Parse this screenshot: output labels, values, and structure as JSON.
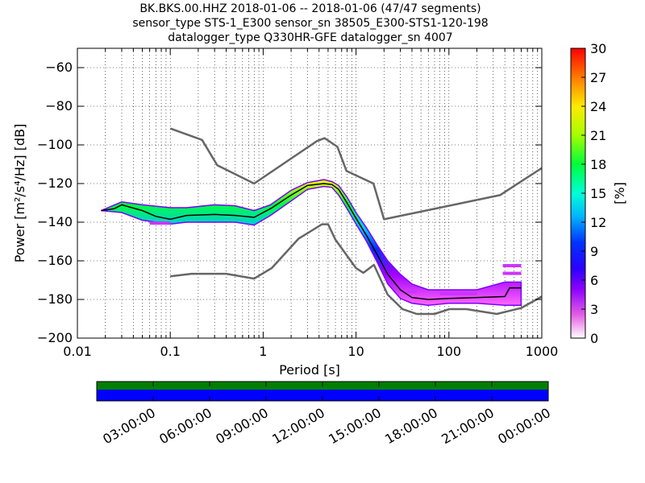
{
  "title_lines": [
    "BK.BKS.00.HHZ   2018-01-06 -- 2018-01-06  (47/47 segments)",
    "sensor_type STS-1_E300 sensor_sn 38505_E300-STS1-120-198",
    "datalogger_type Q330HR-GFE datalogger_sn 4007"
  ],
  "chart_data": {
    "type": "heatmap",
    "title": "BK.BKS.00.HHZ   2018-01-06 -- 2018-01-06  (47/47 segments)",
    "xlabel": "Period [s]",
    "ylabel": "Power [m²/s⁴/Hz] [dB]",
    "xscale": "log",
    "xlim": [
      0.01,
      1000
    ],
    "ylim": [
      -200,
      -50
    ],
    "x_tick_labels": [
      "0.01",
      "0.1",
      "1",
      "10",
      "100",
      "1000"
    ],
    "y_ticks": [
      -200,
      -180,
      -160,
      -140,
      -120,
      -100,
      -80,
      -60
    ],
    "grid": true,
    "colorbar": {
      "label": "[%]",
      "min": 0,
      "max": 30,
      "ticks": [
        0,
        3,
        6,
        9,
        12,
        15,
        18,
        21,
        24,
        27,
        30
      ]
    },
    "high_noise_model": {
      "x": [
        0.1,
        0.22,
        0.32,
        0.8,
        3.8,
        4.6,
        6.3,
        7.9,
        15.4,
        20,
        354.8,
        1000
      ],
      "y": [
        -91.5,
        -97.4,
        -110.5,
        -120,
        -98,
        -96.5,
        -101,
        -113.5,
        -120,
        -138.5,
        -126,
        -112
      ]
    },
    "low_noise_model": {
      "x": [
        0.1,
        0.17,
        0.4,
        0.8,
        1.24,
        2.4,
        4.3,
        5,
        6,
        10,
        12,
        15.6,
        21.9,
        31.6,
        45,
        70,
        101,
        154,
        328,
        600,
        1000
      ],
      "y": [
        -168,
        -166.7,
        -166.7,
        -169.2,
        -163.7,
        -148.6,
        -141.1,
        -141.1,
        -149,
        -163.8,
        -166.2,
        -162.1,
        -177.5,
        -185,
        -187.5,
        -187.5,
        -185,
        -185,
        -187.5,
        -184.4,
        -178.5
      ]
    },
    "median_psd": {
      "x": [
        0.018,
        0.025,
        0.03,
        0.05,
        0.07,
        0.1,
        0.15,
        0.3,
        0.5,
        0.8,
        1.2,
        2,
        3,
        4.5,
        5.5,
        6.5,
        8,
        10,
        13,
        17,
        22,
        30,
        40,
        60,
        100,
        200,
        400,
        450,
        600
      ],
      "y": [
        -134,
        -133,
        -131,
        -134,
        -137,
        -138.5,
        -136.5,
        -136,
        -136.5,
        -137.5,
        -133,
        -126,
        -121,
        -120,
        -120.5,
        -123,
        -130,
        -138,
        -147,
        -157,
        -167,
        -175,
        -179,
        -180,
        -179.5,
        -179,
        -178.5,
        -174,
        -174
      ]
    },
    "spread": {
      "x": [
        0.018,
        0.03,
        0.05,
        0.1,
        0.15,
        0.3,
        0.5,
        0.8,
        1.2,
        2,
        3,
        4.5,
        5.5,
        6.5,
        8,
        10,
        13,
        17,
        22,
        30,
        40,
        60,
        100,
        200,
        400,
        600
      ],
      "upper": [
        -134,
        -129.5,
        -131,
        -132.5,
        -132.5,
        -131,
        -131.5,
        -134,
        -131,
        -123.5,
        -119.5,
        -118,
        -119,
        -121,
        -127,
        -135,
        -143,
        -152,
        -160,
        -167,
        -172,
        -175,
        -175,
        -175,
        -171,
        -171
      ],
      "lower": [
        -134,
        -135,
        -139,
        -141,
        -140,
        -140,
        -140,
        -141.5,
        -136.5,
        -129,
        -123,
        -121.5,
        -122,
        -126,
        -133,
        -141,
        -150,
        -161,
        -172,
        -179.5,
        -182,
        -183,
        -182,
        -182,
        -183,
        -183
      ],
      "outliers_top": [
        {
          "x_range": [
            0.06,
            0.1
          ],
          "y": -140.5
        },
        {
          "x_range": [
            380,
            600
          ],
          "y": -162.5
        },
        {
          "x_range": [
            380,
            600
          ],
          "y": -166.5
        },
        {
          "x_range": [
            35,
            45
          ],
          "y": -176
        },
        {
          "x_range": [
            80,
            200
          ],
          "y": -177
        }
      ]
    },
    "time_axis": {
      "tick_labels": [
        "03:00:00",
        "06:00:00",
        "09:00:00",
        "12:00:00",
        "15:00:00",
        "18:00:00",
        "21:00:00",
        "00:00:00"
      ],
      "bar_colors": [
        "#007f00",
        "#0000ff"
      ]
    }
  }
}
